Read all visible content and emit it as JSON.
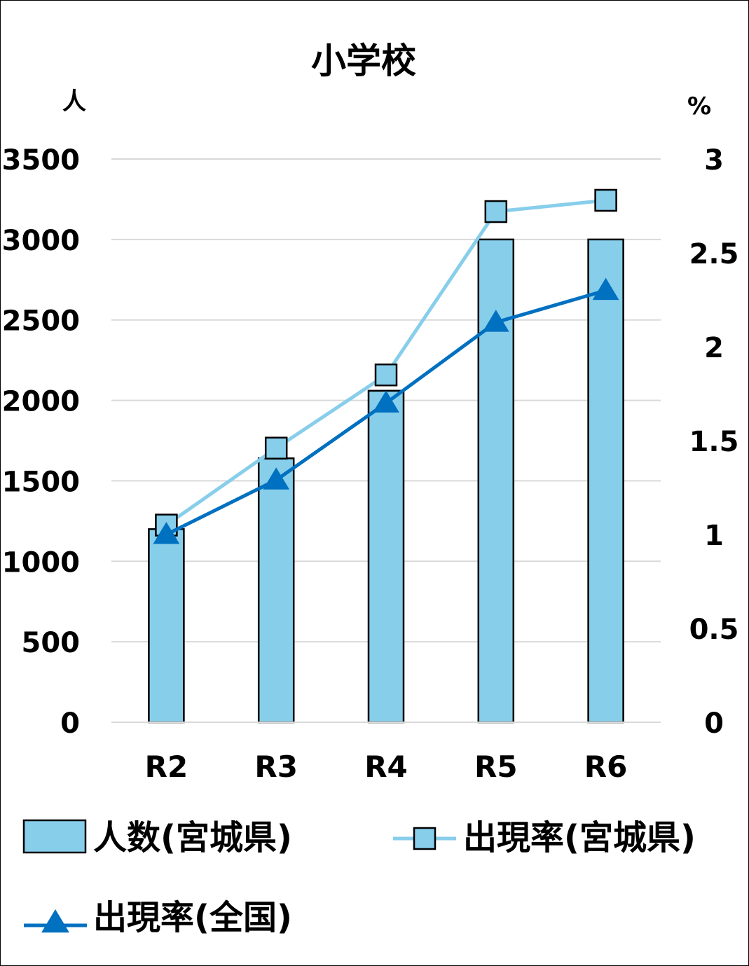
{
  "chart_data": {
    "type": "bar",
    "title": "小学校",
    "categories": [
      "R2",
      "R3",
      "R4",
      "R5",
      "R6"
    ],
    "y_left": {
      "unit": "人",
      "range": [
        0,
        3500
      ],
      "ticks": [
        0,
        500,
        1000,
        1500,
        2000,
        2500,
        3000,
        3500
      ]
    },
    "y_right": {
      "unit": "%",
      "range": [
        0,
        3
      ],
      "ticks": [
        "0",
        "0.5",
        "1",
        "1.5",
        "2",
        "2.5",
        "3"
      ]
    },
    "grid": true,
    "legend_position": "bottom",
    "series": [
      {
        "name": "人数(宮城県)",
        "kind": "bar",
        "axis": "left",
        "color": "#87CEEB",
        "values": [
          1200,
          1640,
          2060,
          3000,
          3000
        ]
      },
      {
        "name": "出現率(宮城県)",
        "kind": "line",
        "marker": "square",
        "axis": "right",
        "color": "#87CEEB",
        "values": [
          1.05,
          1.46,
          1.85,
          2.72,
          2.78
        ]
      },
      {
        "name": "出現率(全国)",
        "kind": "line",
        "marker": "triangle",
        "axis": "right",
        "color": "#0070C0",
        "values": [
          1.0,
          1.29,
          1.7,
          2.13,
          2.3
        ]
      }
    ]
  }
}
